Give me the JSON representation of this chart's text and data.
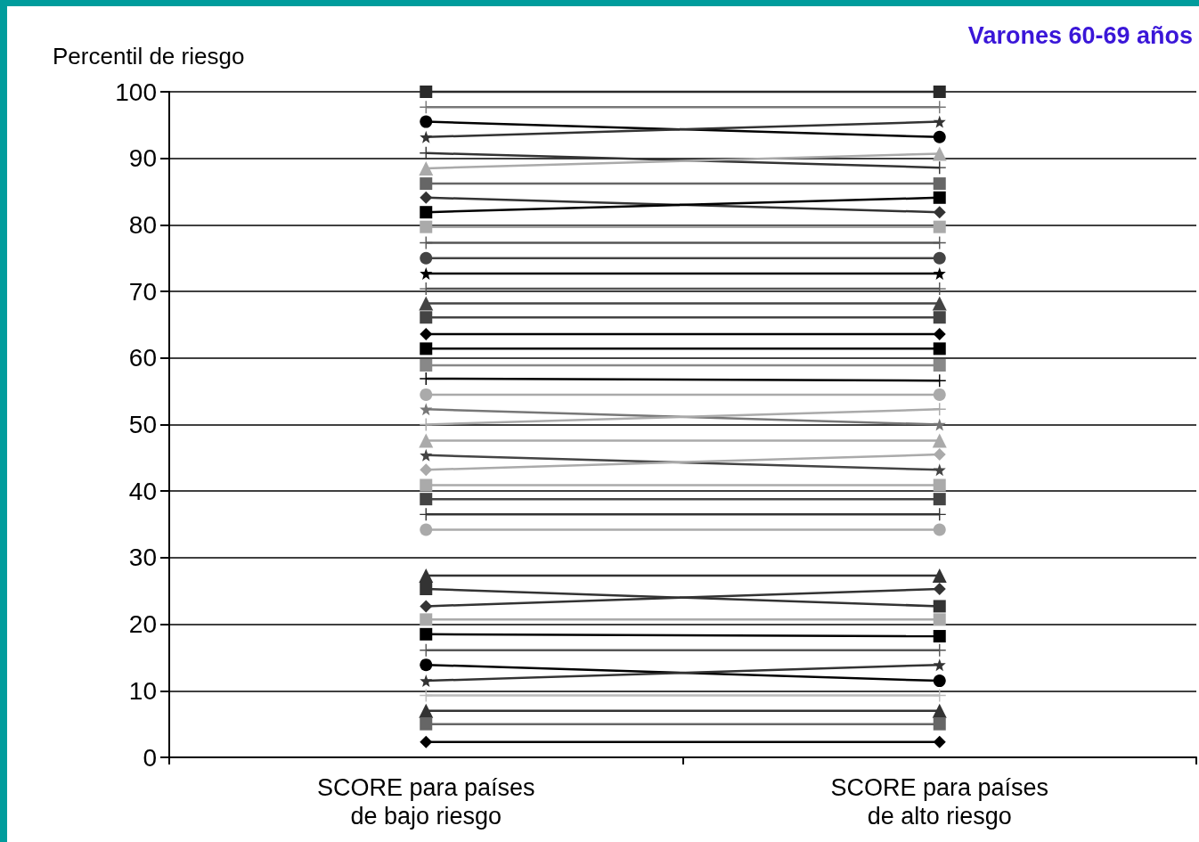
{
  "chart_data": {
    "type": "line",
    "title": "Varones 60-69 años",
    "ylabel": "Percentil de riesgo",
    "categories": [
      "SCORE para países\nde bajo riesgo",
      "SCORE para países\nde alto riesgo"
    ],
    "ylim": [
      0,
      100
    ],
    "yticks": [
      0,
      10,
      20,
      30,
      40,
      50,
      60,
      70,
      80,
      90,
      100
    ],
    "grid": "y",
    "line_style": "solid",
    "series": [
      {
        "color": "#2a2a2a",
        "marker": "square",
        "values": [
          100,
          100
        ]
      },
      {
        "color": "#777777",
        "marker": "cross",
        "values": [
          97.7,
          97.7
        ]
      },
      {
        "color": "#000000",
        "marker": "circle",
        "values": [
          95.5,
          93.2
        ]
      },
      {
        "color": "#333333",
        "marker": "star",
        "values": [
          93.2,
          95.5
        ]
      },
      {
        "color": "#333333",
        "marker": "cross",
        "values": [
          90.8,
          88.6
        ]
      },
      {
        "color": "#aaaaaa",
        "marker": "triangle",
        "values": [
          88.5,
          90.7
        ]
      },
      {
        "color": "#666666",
        "marker": "square",
        "values": [
          86.2,
          86.2
        ]
      },
      {
        "color": "#333333",
        "marker": "diamond",
        "values": [
          84.1,
          81.9
        ]
      },
      {
        "color": "#000000",
        "marker": "square",
        "values": [
          81.9,
          84.1
        ]
      },
      {
        "color": "#aaaaaa",
        "marker": "square",
        "values": [
          79.7,
          79.7
        ]
      },
      {
        "color": "#555555",
        "marker": "cross",
        "values": [
          77.3,
          77.3
        ]
      },
      {
        "color": "#444444",
        "marker": "circle",
        "values": [
          75.0,
          75.0
        ]
      },
      {
        "color": "#000000",
        "marker": "star",
        "values": [
          72.7,
          72.7
        ]
      },
      {
        "color": "#555555",
        "marker": "cross",
        "values": [
          70.4,
          70.4
        ]
      },
      {
        "color": "#444444",
        "marker": "triangle",
        "values": [
          68.2,
          68.2
        ]
      },
      {
        "color": "#444444",
        "marker": "square",
        "values": [
          66.1,
          66.1
        ]
      },
      {
        "color": "#000000",
        "marker": "diamond",
        "values": [
          63.6,
          63.6
        ]
      },
      {
        "color": "#000000",
        "marker": "square",
        "values": [
          61.4,
          61.4
        ]
      },
      {
        "color": "#888888",
        "marker": "square",
        "values": [
          58.9,
          58.9
        ]
      },
      {
        "color": "#000000",
        "marker": "cross",
        "values": [
          56.9,
          56.6
        ]
      },
      {
        "color": "#aaaaaa",
        "marker": "circle",
        "values": [
          54.5,
          54.5
        ]
      },
      {
        "color": "#777777",
        "marker": "star",
        "values": [
          52.3,
          50.0
        ]
      },
      {
        "color": "#aaaaaa",
        "marker": "cross",
        "values": [
          50.0,
          52.3
        ]
      },
      {
        "color": "#aaaaaa",
        "marker": "triangle",
        "values": [
          47.6,
          47.6
        ]
      },
      {
        "color": "#444444",
        "marker": "star",
        "values": [
          45.4,
          43.2
        ]
      },
      {
        "color": "#aaaaaa",
        "marker": "diamond",
        "values": [
          43.2,
          45.5
        ]
      },
      {
        "color": "#aaaaaa",
        "marker": "square",
        "values": [
          40.9,
          40.9
        ]
      },
      {
        "color": "#444444",
        "marker": "square",
        "values": [
          38.8,
          38.8
        ]
      },
      {
        "color": "#333333",
        "marker": "cross",
        "values": [
          36.5,
          36.5
        ]
      },
      {
        "color": "#aaaaaa",
        "marker": "circle",
        "values": [
          34.2,
          34.2
        ]
      },
      {
        "color": "#333333",
        "marker": "triangle",
        "values": [
          27.3,
          27.3
        ]
      },
      {
        "color": "#333333",
        "marker": "square",
        "values": [
          25.3,
          22.7
        ]
      },
      {
        "color": "#333333",
        "marker": "diamond",
        "values": [
          22.7,
          25.3
        ]
      },
      {
        "color": "#aaaaaa",
        "marker": "square",
        "values": [
          20.7,
          20.7
        ]
      },
      {
        "color": "#000000",
        "marker": "square",
        "values": [
          18.5,
          18.2
        ]
      },
      {
        "color": "#555555",
        "marker": "cross",
        "values": [
          16.1,
          16.1
        ]
      },
      {
        "color": "#000000",
        "marker": "circle",
        "values": [
          13.9,
          11.5
        ]
      },
      {
        "color": "#333333",
        "marker": "star",
        "values": [
          11.5,
          13.9
        ]
      },
      {
        "color": "#bbbbbb",
        "marker": "cross",
        "values": [
          9.3,
          9.3
        ]
      },
      {
        "color": "#333333",
        "marker": "triangle",
        "values": [
          7.0,
          7.0
        ]
      },
      {
        "color": "#666666",
        "marker": "square",
        "values": [
          5.0,
          5.0
        ]
      },
      {
        "color": "#000000",
        "marker": "diamond",
        "values": [
          2.3,
          2.3
        ]
      }
    ]
  }
}
